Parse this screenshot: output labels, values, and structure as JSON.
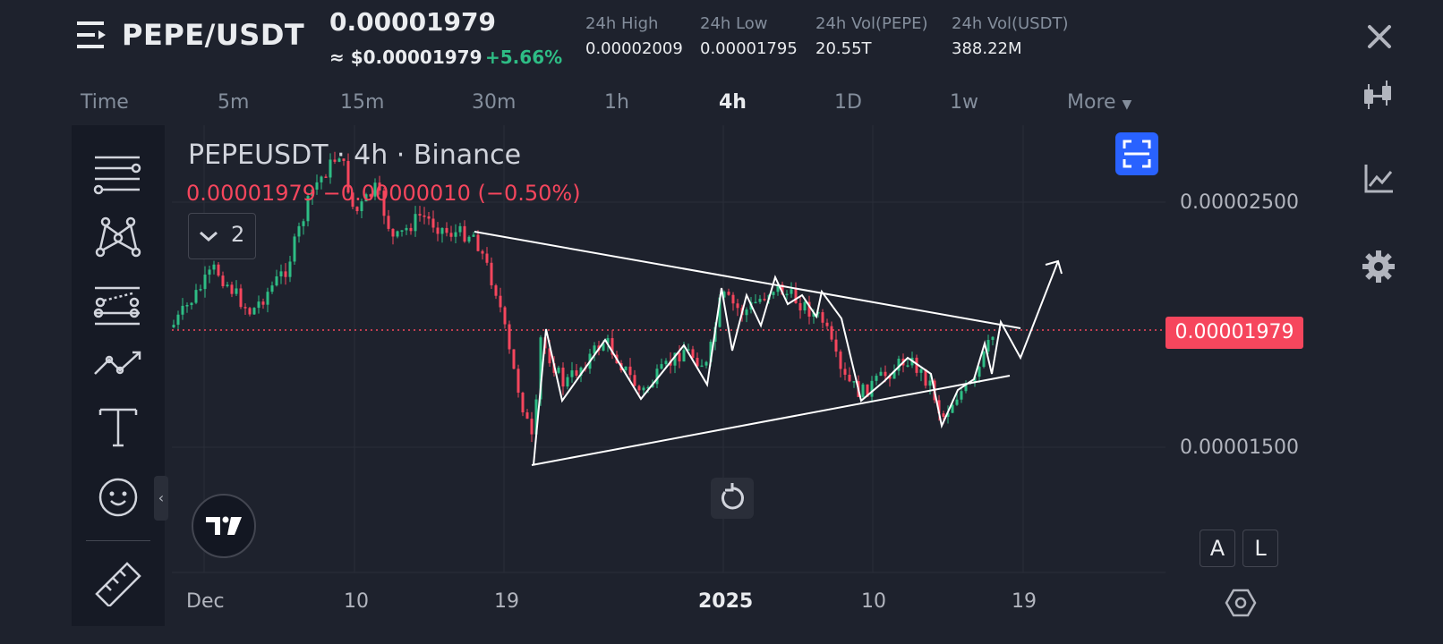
{
  "header": {
    "pair": "PEPE/USDT",
    "last_price": "0.00001979",
    "usd_price": "≈ $0.00001979",
    "change_percent": "+5.66%",
    "stats": [
      {
        "label": "24h High",
        "value": "0.00002009"
      },
      {
        "label": "24h Low",
        "value": "0.00001795"
      },
      {
        "label": "24h Vol(PEPE)",
        "value": "20.55T"
      },
      {
        "label": "24h Vol(USDT)",
        "value": "388.22M"
      }
    ]
  },
  "timeframes": {
    "items": [
      "Time",
      "5m",
      "15m",
      "30m",
      "1h",
      "4h",
      "1D",
      "1w"
    ],
    "active": "4h",
    "more_label": "More"
  },
  "chart": {
    "title": "PEPEUSDT · 4h · Binance",
    "ohlc": "0.00001979 −0.00000010 (−0.50%)",
    "indicator_count": "2",
    "current_price": "0.00001979",
    "price_axis": [
      "0.00002500",
      "0.00001500"
    ],
    "time_axis": [
      "Dec",
      "10",
      "19",
      "2025",
      "10",
      "19"
    ],
    "auto_label": "A",
    "log_label": "L"
  },
  "colors": {
    "up": "#2ebd85",
    "down": "#f6465d",
    "accent": "#2962ff",
    "background": "#1e222d"
  },
  "icons": {
    "header": [
      "menu-icon",
      "close-icon"
    ],
    "toolbar": [
      "trend-lines-icon",
      "pattern-icon",
      "forecast-icon",
      "brush-icon",
      "text-icon",
      "emoji-icon",
      "ruler-icon"
    ],
    "sidebar": [
      "candles-icon",
      "indicator-icon",
      "settings-icon"
    ]
  }
}
